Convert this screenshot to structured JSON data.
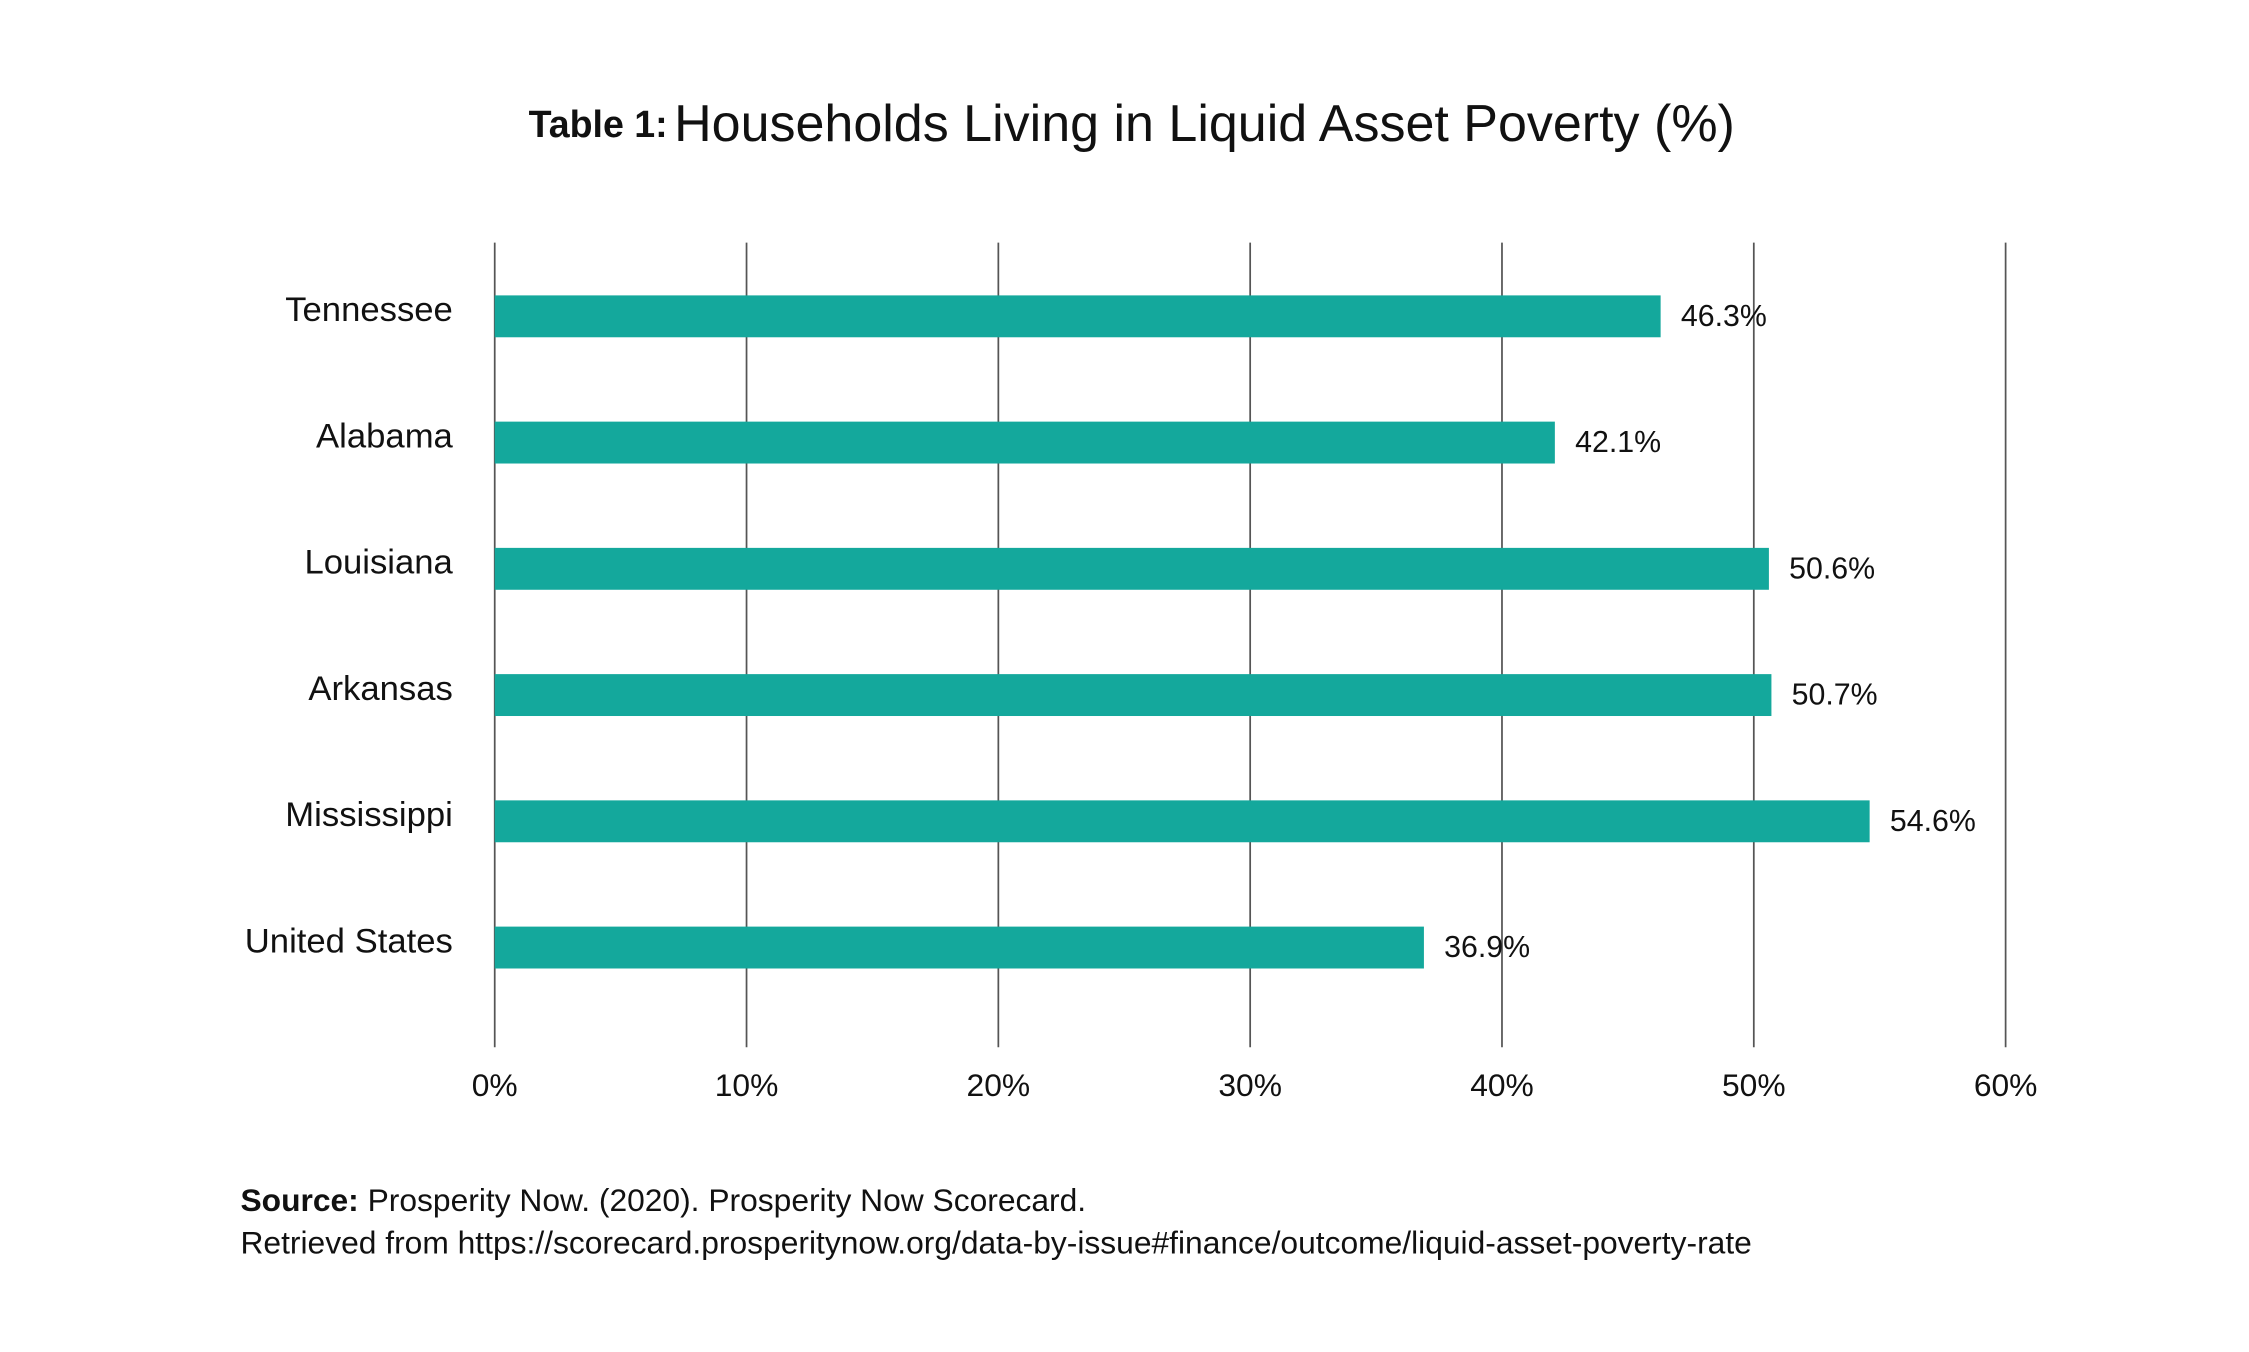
{
  "chart_data": {
    "type": "bar",
    "orientation": "horizontal",
    "title_prefix": "Table 1:",
    "title": "Households Living in Liquid Asset Poverty (%)",
    "categories": [
      "Tennessee",
      "Alabama",
      "Louisiana",
      "Arkansas",
      "Mississippi",
      "United States"
    ],
    "values": [
      46.3,
      42.1,
      50.6,
      50.7,
      54.6,
      36.9
    ],
    "value_labels": [
      "46.3%",
      "42.1%",
      "50.6%",
      "50.7%",
      "54.6%",
      "36.9%"
    ],
    "color": "#14a89c",
    "xlim": [
      0,
      60
    ],
    "xticks": [
      {
        "value": 0,
        "label": "0%"
      },
      {
        "value": 10,
        "label": "10%"
      },
      {
        "value": 20,
        "label": "20%"
      },
      {
        "value": 30,
        "label": "30%"
      },
      {
        "value": 40,
        "label": "40%"
      },
      {
        "value": 50,
        "label": "50%"
      },
      {
        "value": 60,
        "label": "60%"
      }
    ],
    "grid": true,
    "source_label": "Source:",
    "source_text": "Prosperity Now. (2020). Prosperity Now Scorecard.",
    "source_url_line": "Retrieved from https://scorecard.prosperitynow.org/data-by-issue#finance/outcome/liquid-asset-poverty-rate"
  }
}
